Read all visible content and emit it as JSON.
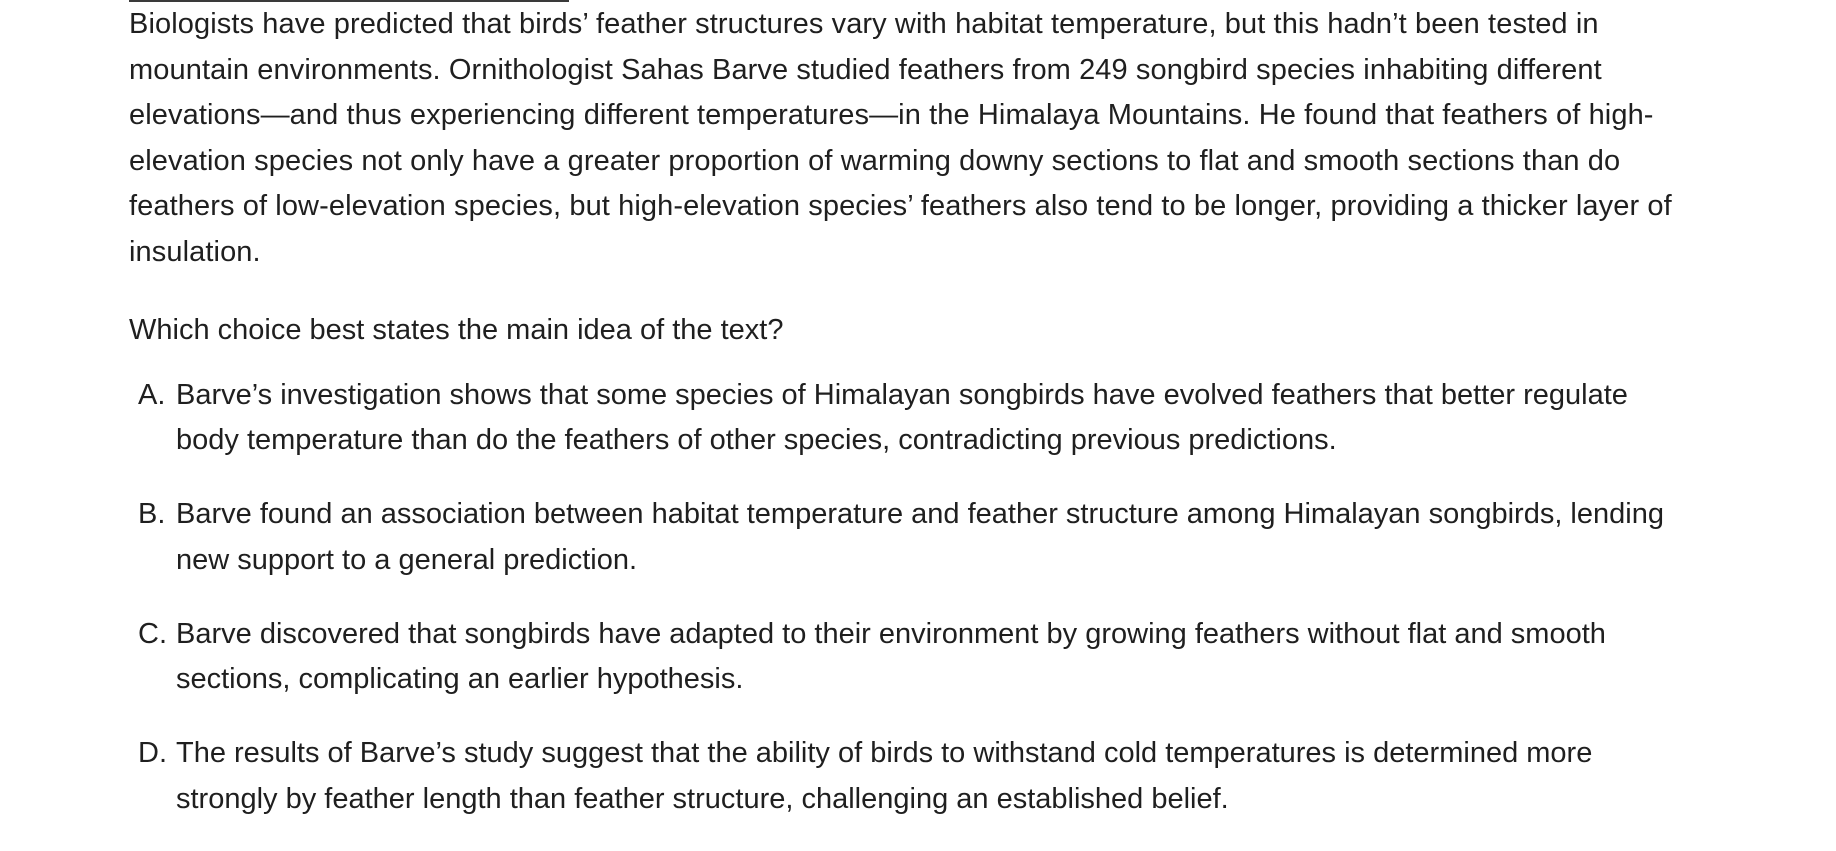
{
  "passage": {
    "text": "Biologists have predicted that birds’ feather structures vary with habitat temperature, but this hadn’t been tested in mountain environments. Ornithologist Sahas Barve studied feathers from 249 songbird species inhabiting different elevations—and thus experiencing different temperatures—in the Himalaya Mountains. He found that feathers of high-elevation species not only have a greater proportion of warming downy sections to flat and smooth sections than do feathers of low-elevation species, but high-elevation species’ feathers also tend to be longer, providing a thicker layer of insulation."
  },
  "question": {
    "prompt": "Which choice best states the main idea of the text?"
  },
  "choices": [
    {
      "letter": "A.",
      "text": "Barve’s investigation shows that some species of Himalayan songbirds have evolved feathers that better regulate body temperature than do the feathers of other species, contradicting previous predictions."
    },
    {
      "letter": "B.",
      "text": "Barve found an association between habitat temperature and feather structure among Himalayan songbirds, lending new support to a general prediction."
    },
    {
      "letter": "C.",
      "text": "Barve discovered that songbirds have adapted to their environment by growing feathers without flat and smooth sections, complicating an earlier hypothesis."
    },
    {
      "letter": "D.",
      "text": "The results of Barve’s study suggest that the ability of birds to withstand cold temperatures is determined more strongly by feather length than feather structure, challenging an established belief."
    }
  ]
}
